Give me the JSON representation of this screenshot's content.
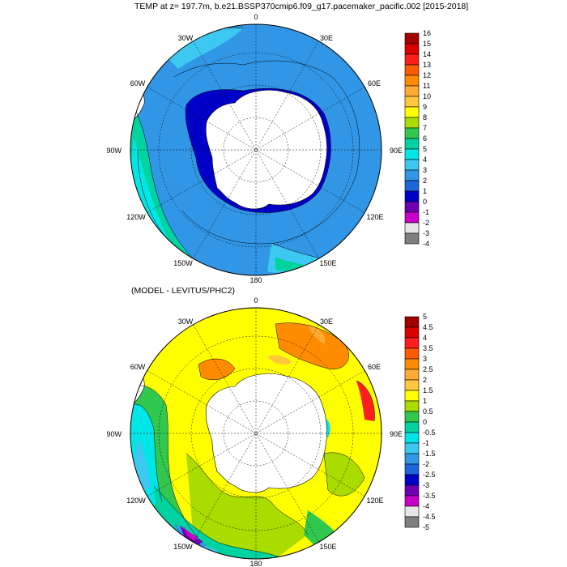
{
  "panels": [
    {
      "title": "TEMP at z= 197.7m, b.e21.BSSP370cmip6.f09_g17.pacemaker_pacific.002 [2015-2018]",
      "lon_labels": [
        "0",
        "30E",
        "60E",
        "90E",
        "120E",
        "150E",
        "180",
        "150W",
        "120W",
        "90W",
        "60W",
        "30W"
      ],
      "colorbar": {
        "labels": [
          "16",
          "15",
          "14",
          "13",
          "12",
          "11",
          "10",
          "9",
          "8",
          "7",
          "6",
          "5",
          "4",
          "3",
          "2",
          "1",
          "0",
          "-1",
          "-2",
          "-3",
          "-4"
        ],
        "colors": [
          "#a50000",
          "#dc0000",
          "#ff1e1e",
          "#ff5a00",
          "#ff8c00",
          "#ffaa32",
          "#ffc83c",
          "#ffff00",
          "#aadc00",
          "#32c850",
          "#00d2a0",
          "#00e6e6",
          "#3cc8f0",
          "#3296e6",
          "#1e64dc",
          "#0000c8",
          "#6e00b4",
          "#c800c8",
          "#e6e6e6",
          "#7f7f7f"
        ]
      }
    },
    {
      "title": "(MODEL - LEVITUS/PHC2)",
      "lon_labels": [
        "0",
        "30E",
        "60E",
        "90E",
        "120E",
        "150E",
        "180",
        "150W",
        "120W",
        "90W",
        "60W",
        "30W"
      ],
      "colorbar": {
        "labels": [
          "5",
          "4.5",
          "4",
          "3.5",
          "3",
          "2.5",
          "2",
          "1.5",
          "1",
          "0.5",
          "0",
          "-0.5",
          "-1",
          "-1.5",
          "-2",
          "-2.5",
          "-3",
          "-3.5",
          "-4",
          "-4.5",
          "-5"
        ],
        "colors": [
          "#a50000",
          "#dc0000",
          "#ff1e1e",
          "#ff5a00",
          "#ff8c00",
          "#ffaa32",
          "#ffc83c",
          "#ffff00",
          "#aadc00",
          "#32c850",
          "#00d2a0",
          "#00e6e6",
          "#3cc8f0",
          "#3296e6",
          "#1e64dc",
          "#0000c8",
          "#6e00b4",
          "#c800c8",
          "#e6e6e6",
          "#7f7f7f"
        ]
      }
    }
  ]
}
